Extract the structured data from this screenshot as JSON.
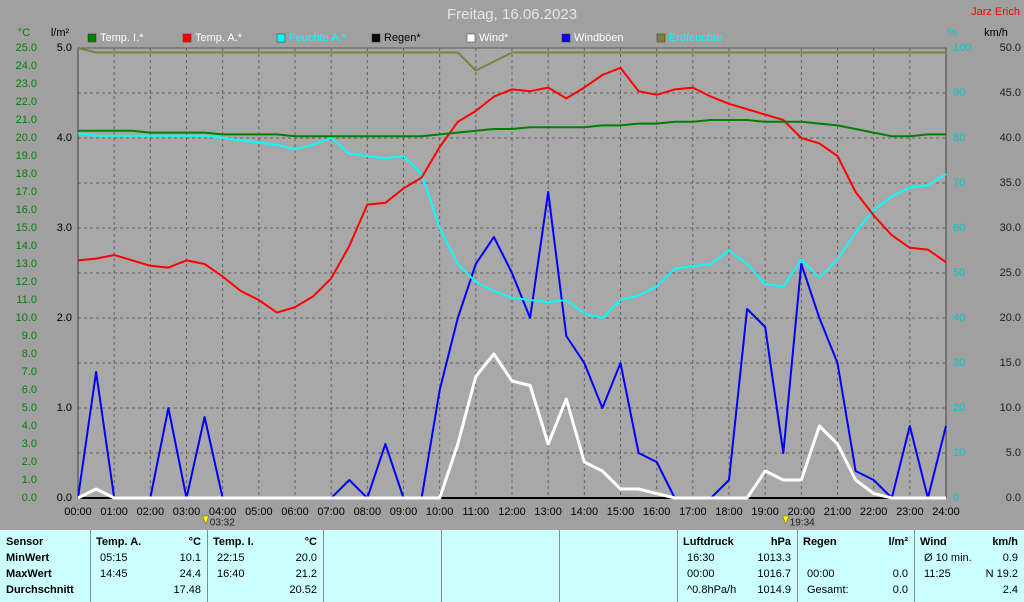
{
  "chart_data": {
    "type": "line",
    "title": "Freitag, 16.06.2023",
    "author": "Jarz Erich",
    "ylabel": "°C",
    "y2label": "%",
    "y3label": "l/m²",
    "y4label": "km/h",
    "x": [
      0,
      0.5,
      1,
      1.5,
      2,
      2.5,
      3,
      3.5,
      4,
      4.5,
      5,
      5.5,
      6,
      6.5,
      7,
      7.5,
      8,
      8.5,
      9,
      9.5,
      10,
      10.5,
      11,
      11.5,
      12,
      12.5,
      13,
      13.5,
      14,
      14.5,
      15,
      15.5,
      16,
      16.5,
      17,
      17.5,
      18,
      18.5,
      19,
      19.5,
      20,
      20.5,
      21,
      21.5,
      22,
      22.5,
      23,
      23.5,
      24
    ],
    "xlim": [
      0,
      24
    ],
    "xticks": [
      {
        "value": 0,
        "label": "00:00"
      },
      {
        "value": 1,
        "label": "01:00"
      },
      {
        "value": 2,
        "label": "02:00"
      },
      {
        "value": 3,
        "label": "03:00"
      },
      {
        "value": 4,
        "label": "04:00"
      },
      {
        "value": 5,
        "label": "05:00"
      },
      {
        "value": 6,
        "label": "06:00"
      },
      {
        "value": 7,
        "label": "07:00"
      },
      {
        "value": 8,
        "label": "08:00"
      },
      {
        "value": 9,
        "label": "09:00"
      },
      {
        "value": 10,
        "label": "10:00"
      },
      {
        "value": 11,
        "label": "11:00"
      },
      {
        "value": 12,
        "label": "12:00"
      },
      {
        "value": 13,
        "label": "13:00"
      },
      {
        "value": 14,
        "label": "14:00"
      },
      {
        "value": 15,
        "label": "15:00"
      },
      {
        "value": 16,
        "label": "16:00"
      },
      {
        "value": 17,
        "label": "17:00"
      },
      {
        "value": 18,
        "label": "18:00"
      },
      {
        "value": 19,
        "label": "19:00"
      },
      {
        "value": 20,
        "label": "20:00"
      },
      {
        "value": 21,
        "label": "21:00"
      },
      {
        "value": 22,
        "label": "22:00"
      },
      {
        "value": 23,
        "label": "23:00"
      },
      {
        "value": 24,
        "label": "24:00"
      }
    ],
    "ylim": [
      0,
      25
    ],
    "yticks": [
      {
        "value": 0,
        "label": "0.0"
      },
      {
        "value": 1,
        "label": "1.0"
      },
      {
        "value": 2,
        "label": "2.0"
      },
      {
        "value": 3,
        "label": "3.0"
      },
      {
        "value": 4,
        "label": "4.0"
      },
      {
        "value": 5,
        "label": "5.0"
      },
      {
        "value": 6,
        "label": "6.0"
      },
      {
        "value": 7,
        "label": "7.0"
      },
      {
        "value": 8,
        "label": "8.0"
      },
      {
        "value": 9,
        "label": "9.0"
      },
      {
        "value": 10,
        "label": "10.0"
      },
      {
        "value": 11,
        "label": "11.0"
      },
      {
        "value": 12,
        "label": "12.0"
      },
      {
        "value": 13,
        "label": "13.0"
      },
      {
        "value": 14,
        "label": "14.0"
      },
      {
        "value": 15,
        "label": "15.0"
      },
      {
        "value": 16,
        "label": "16.0"
      },
      {
        "value": 17,
        "label": "17.0"
      },
      {
        "value": 18,
        "label": "18.0"
      },
      {
        "value": 19,
        "label": "19.0"
      },
      {
        "value": 20,
        "label": "20.0"
      },
      {
        "value": 21,
        "label": "21.0"
      },
      {
        "value": 22,
        "label": "22.0"
      },
      {
        "value": 23,
        "label": "23.0"
      },
      {
        "value": 24,
        "label": "24.0"
      },
      {
        "value": 25,
        "label": "25.0"
      }
    ],
    "y2lim": [
      0,
      100
    ],
    "y2ticks": [
      0,
      10,
      20,
      30,
      40,
      50,
      60,
      70,
      80,
      90,
      100
    ],
    "y3lim": [
      0,
      5
    ],
    "y3ticks": [
      {
        "value": 0,
        "label": "0.0"
      },
      {
        "value": 1,
        "label": "1.0"
      },
      {
        "value": 2,
        "label": "2.0"
      },
      {
        "value": 3,
        "label": "3.0"
      },
      {
        "value": 4,
        "label": "4.0"
      },
      {
        "value": 5,
        "label": "5.0"
      }
    ],
    "y4lim": [
      0,
      50
    ],
    "y4ticks": [
      {
        "value": 0,
        "label": "0.0"
      },
      {
        "value": 5,
        "label": "5.0"
      },
      {
        "value": 10,
        "label": "10.0"
      },
      {
        "value": 15,
        "label": "15.0"
      },
      {
        "value": 20,
        "label": "20.0"
      },
      {
        "value": 25,
        "label": "25.0"
      },
      {
        "value": 30,
        "label": "30.0"
      },
      {
        "value": 35,
        "label": "35.0"
      },
      {
        "value": 40,
        "label": "40.0"
      },
      {
        "value": 45,
        "label": "45.0"
      },
      {
        "value": 50,
        "label": "50.0"
      }
    ],
    "grid": true,
    "annotations": [
      {
        "label": "03:32",
        "x": 3.533
      },
      {
        "label": "19:34",
        "x": 19.567
      }
    ],
    "series": [
      {
        "name": "Temp. I.*",
        "color": "#008000",
        "axis": "y",
        "values": [
          20.4,
          20.4,
          20.4,
          20.4,
          20.3,
          20.3,
          20.3,
          20.3,
          20.2,
          20.2,
          20.2,
          20.2,
          20.1,
          20.1,
          20.1,
          20.1,
          20.1,
          20.1,
          20.1,
          20.1,
          20.2,
          20.3,
          20.4,
          20.5,
          20.5,
          20.6,
          20.6,
          20.6,
          20.6,
          20.7,
          20.7,
          20.8,
          20.8,
          20.9,
          20.9,
          21.0,
          21.0,
          21.0,
          20.9,
          20.9,
          20.9,
          20.8,
          20.7,
          20.5,
          20.3,
          20.1,
          20.1,
          20.2,
          20.2
        ]
      },
      {
        "name": "Temp. A.*",
        "color": "#ff0000",
        "axis": "y",
        "values": [
          13.2,
          13.3,
          13.5,
          13.2,
          12.9,
          12.8,
          13.2,
          13.0,
          12.3,
          11.5,
          11.0,
          10.3,
          10.6,
          11.2,
          12.2,
          14.0,
          16.3,
          16.4,
          17.2,
          17.8,
          19.5,
          20.9,
          21.5,
          22.3,
          22.7,
          22.6,
          22.8,
          22.2,
          22.8,
          23.5,
          23.9,
          22.6,
          22.4,
          22.7,
          22.8,
          22.3,
          21.9,
          21.6,
          21.3,
          21.0,
          20.0,
          19.7,
          19.0,
          17.0,
          15.7,
          14.6,
          13.9,
          13.8,
          13.1
        ]
      },
      {
        "name": "Feuchte A.*",
        "color": "#00ffff",
        "axis": "y2",
        "values": [
          81,
          80.5,
          80.5,
          80.5,
          80.5,
          80.5,
          80.5,
          80.5,
          80,
          79.5,
          79,
          78.5,
          77.5,
          78.5,
          80,
          76.5,
          76,
          75.5,
          76,
          72,
          60,
          52,
          48,
          46,
          44.5,
          44,
          43.5,
          44,
          41,
          40,
          44,
          45,
          47,
          51,
          51.5,
          52,
          55,
          52,
          47.5,
          47,
          53,
          49,
          53,
          59,
          64,
          67,
          69,
          69.5,
          72
        ]
      },
      {
        "name": "Regen*",
        "color": "#000000",
        "axis": "y3",
        "values": [
          0,
          0,
          0,
          0,
          0,
          0,
          0,
          0,
          0,
          0,
          0,
          0,
          0,
          0,
          0,
          0,
          0,
          0,
          0,
          0,
          0,
          0,
          0,
          0,
          0,
          0,
          0,
          0,
          0,
          0,
          0,
          0,
          0,
          0,
          0,
          0,
          0,
          0,
          0,
          0,
          0,
          0,
          0,
          0,
          0,
          0,
          0,
          0,
          0
        ]
      },
      {
        "name": "Wind*",
        "color": "#ffffff",
        "axis": "y4",
        "values": [
          0,
          1,
          0,
          0,
          0,
          0,
          0,
          0,
          0,
          0,
          0,
          0,
          0,
          0,
          0,
          0,
          0,
          0,
          0,
          0,
          0,
          6,
          13.5,
          16,
          13,
          12.5,
          6,
          11,
          4,
          3,
          1,
          1,
          0.5,
          0,
          0,
          0,
          0,
          0,
          3,
          2,
          2,
          8,
          6,
          2,
          0.5,
          0,
          0,
          0,
          0
        ]
      },
      {
        "name": "Windböen",
        "color": "#0000ff",
        "axis": "y4",
        "values": [
          0,
          14,
          0,
          0,
          0,
          10,
          0,
          9,
          0,
          0,
          0,
          0,
          0,
          0,
          0,
          2,
          0,
          6,
          0,
          0,
          12,
          20,
          26,
          29,
          25,
          20,
          34,
          18,
          15,
          10,
          15,
          5,
          4,
          0,
          0,
          0,
          2,
          21,
          19,
          5,
          26,
          20,
          15,
          3,
          2,
          0,
          8,
          0,
          8
        ]
      },
      {
        "name": "Erdfeuchte",
        "color": "#808040",
        "axis": "y2",
        "values": [
          100,
          99,
          99,
          99,
          99,
          99,
          99,
          99,
          99,
          99,
          99,
          99,
          99,
          99,
          99,
          99,
          99,
          99,
          99,
          99,
          99,
          99,
          95,
          97,
          99,
          99,
          99,
          99,
          99,
          99,
          99,
          99,
          99,
          99,
          99,
          99,
          99,
          99,
          99,
          99,
          99,
          99,
          99,
          99,
          99,
          99,
          99,
          99,
          99
        ]
      }
    ]
  },
  "table": {
    "labels": [
      "Sensor",
      "MinWert",
      "MaxWert",
      "Durchschnitt"
    ],
    "columns": [
      {
        "title": "Temp. A.",
        "unit": "°C",
        "rows": [
          [
            "05:15",
            "10.1"
          ],
          [
            "14:45",
            "24.4"
          ],
          [
            null,
            "17.48"
          ]
        ]
      },
      {
        "title": "Temp. I.",
        "unit": "°C",
        "rows": [
          [
            "22:15",
            "20.0"
          ],
          [
            "16:40",
            "21.2"
          ],
          [
            null,
            "20.52"
          ]
        ]
      },
      {
        "title": "Luftdruck",
        "unit": "hPa",
        "rows": [
          [
            "16:30",
            "1013.3"
          ],
          [
            "00:00",
            "1016.7"
          ],
          [
            "^0.8hPa/h",
            "1014.9"
          ]
        ]
      },
      {
        "title": "Regen",
        "unit": "l/m²",
        "rows": [
          [
            null,
            null
          ],
          [
            "00:00",
            "0.0"
          ],
          [
            "Gesamt:",
            "0.0"
          ]
        ]
      },
      {
        "title": "Wind",
        "unit": "km/h",
        "rows": [
          [
            "Ø 10 min.",
            "0.9"
          ],
          [
            "11:25",
            "N 19.2"
          ],
          [
            null,
            "2.4"
          ]
        ]
      }
    ]
  }
}
